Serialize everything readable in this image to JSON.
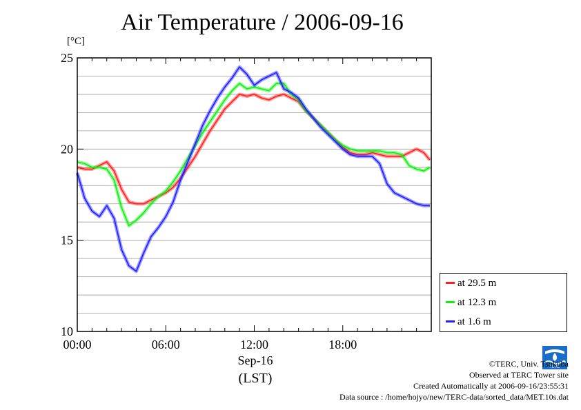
{
  "colors": {
    "series_red": "#ff2020",
    "series_green": "#10f010",
    "series_blue": "#2020ff",
    "logo_blue": "#1a6ec8"
  },
  "header": {
    "title": "Air Temperature / 2006-09-16",
    "unit": "[°C]"
  },
  "axis": {
    "date_label": "Sep-16",
    "tz_label": "(LST)"
  },
  "legend": {
    "items": [
      "at 29.5 m",
      "at 12.3 m",
      "at 1.6 m"
    ]
  },
  "credits": {
    "line1": "©TERC, Univ. Tsukuba",
    "line2": "Observed at TERC Tower site",
    "line3": "Created Automatically at 2006-09-16/23:55:31",
    "line4": "Data source : /home/hojyo/new/TERC-data/sorted_data/MET.10s.dat"
  },
  "logo": {
    "icon": "terc-logo",
    "text": "TERC"
  },
  "chart_data": {
    "type": "line",
    "title": "Air Temperature / 2006-09-16",
    "ylabel": "[°C]",
    "xlabel": "Sep-16 (LST)",
    "xlim": [
      0,
      24
    ],
    "ylim": [
      10,
      25
    ],
    "x_ticks": [
      "00:00",
      "06:00",
      "12:00",
      "18:00"
    ],
    "y_ticks": [
      10,
      15,
      20,
      25
    ],
    "grid": true,
    "legend_position": "right-bottom (outside)",
    "x": [
      0,
      0.5,
      1,
      1.5,
      2,
      2.5,
      3,
      3.5,
      4,
      4.5,
      5,
      5.5,
      6,
      6.5,
      7,
      7.5,
      8,
      8.5,
      9,
      9.5,
      10,
      10.5,
      11,
      11.5,
      12,
      12.5,
      13,
      13.5,
      14,
      14.5,
      15,
      15.5,
      16,
      16.5,
      17,
      17.5,
      18,
      18.5,
      19,
      19.5,
      20,
      20.5,
      21,
      21.5,
      22,
      22.5,
      23,
      23.5,
      23.9
    ],
    "series": [
      {
        "name": "at 29.5 m",
        "color": "#ff2020",
        "values": [
          19.0,
          18.9,
          18.9,
          19.1,
          19.3,
          18.8,
          17.8,
          17.1,
          17.0,
          17.0,
          17.2,
          17.4,
          17.6,
          17.9,
          18.4,
          19.0,
          19.6,
          20.3,
          21.0,
          21.6,
          22.2,
          22.6,
          23.0,
          22.9,
          23.0,
          22.8,
          22.7,
          22.9,
          23.0,
          22.8,
          22.6,
          22.1,
          21.7,
          21.3,
          20.9,
          20.5,
          20.1,
          19.8,
          19.7,
          19.7,
          19.8,
          19.7,
          19.6,
          19.6,
          19.6,
          19.8,
          20.0,
          19.8,
          19.4
        ]
      },
      {
        "name": "at 12.3 m",
        "color": "#10f010",
        "values": [
          19.3,
          19.2,
          19.0,
          19.0,
          18.9,
          18.3,
          16.8,
          15.8,
          16.1,
          16.5,
          17.0,
          17.4,
          17.7,
          18.2,
          18.8,
          19.5,
          20.2,
          20.9,
          21.5,
          22.1,
          22.7,
          23.2,
          23.6,
          23.3,
          23.4,
          23.3,
          23.2,
          23.6,
          23.6,
          23.0,
          22.7,
          22.1,
          21.7,
          21.3,
          20.9,
          20.5,
          20.2,
          20.0,
          19.9,
          19.9,
          19.9,
          19.9,
          19.8,
          19.8,
          19.7,
          19.1,
          18.9,
          18.8,
          19.0
        ]
      },
      {
        "name": "at 1.6 m",
        "color": "#2020ff",
        "values": [
          18.7,
          17.3,
          16.6,
          16.3,
          16.9,
          16.2,
          14.5,
          13.6,
          13.3,
          14.3,
          15.2,
          15.7,
          16.3,
          17.1,
          18.3,
          19.3,
          20.3,
          21.3,
          22.1,
          22.8,
          23.4,
          23.9,
          24.5,
          24.1,
          23.5,
          23.8,
          24.0,
          24.2,
          23.3,
          23.1,
          22.8,
          22.2,
          21.7,
          21.2,
          20.8,
          20.4,
          20.0,
          19.7,
          19.6,
          19.6,
          19.6,
          19.2,
          18.1,
          17.6,
          17.4,
          17.2,
          17.0,
          16.9,
          16.9
        ]
      }
    ]
  }
}
